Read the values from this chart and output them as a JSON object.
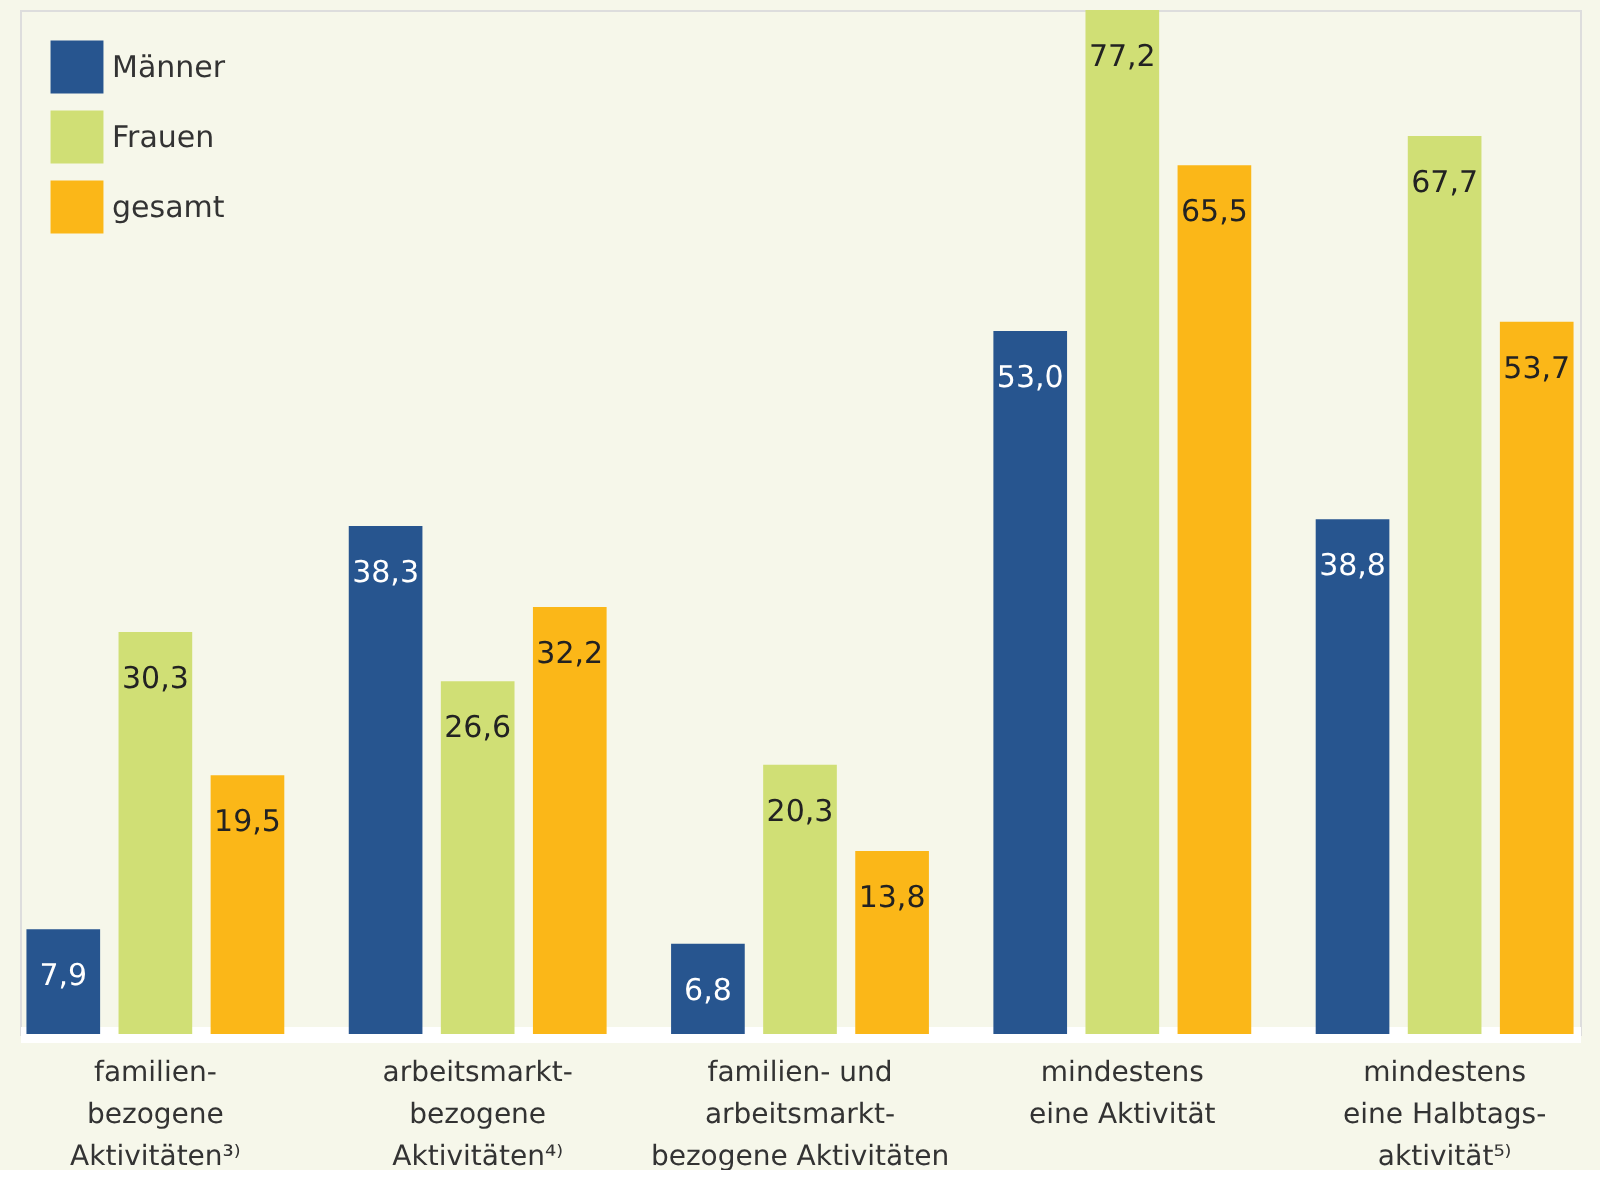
{
  "chart_data": {
    "type": "bar",
    "categories": [
      "familien-\nbezogene\nAktivitäten³⁾",
      "arbeitsmarkt-\nbezogene\nAktivitäten⁴⁾",
      "familien- und\narbeitsmarkt-\nbezogene Aktivitäten",
      "mindestens\neine Aktivität",
      "mindestens\neine Halbtags-\naktivität⁵⁾"
    ],
    "series": [
      {
        "name": "Männer",
        "color": "#27558f",
        "values": [
          7.9,
          38.3,
          6.8,
          53.0,
          38.8
        ],
        "value_labels": [
          "7,9",
          "38,3",
          "6,8",
          "53,0",
          "38,8"
        ]
      },
      {
        "name": "Frauen",
        "color": "#d0df75",
        "values": [
          30.3,
          26.6,
          20.3,
          77.2,
          67.7
        ],
        "value_labels": [
          "30,3",
          "26,6",
          "20,3",
          "77,2",
          "67,7"
        ]
      },
      {
        "name": "gesamt",
        "color": "#fbb718",
        "values": [
          19.5,
          32.2,
          13.8,
          65.5,
          53.7
        ],
        "value_labels": [
          "19,5",
          "32,2",
          "13,8",
          "65,5",
          "53,7"
        ]
      }
    ],
    "legend": "top left"
  }
}
